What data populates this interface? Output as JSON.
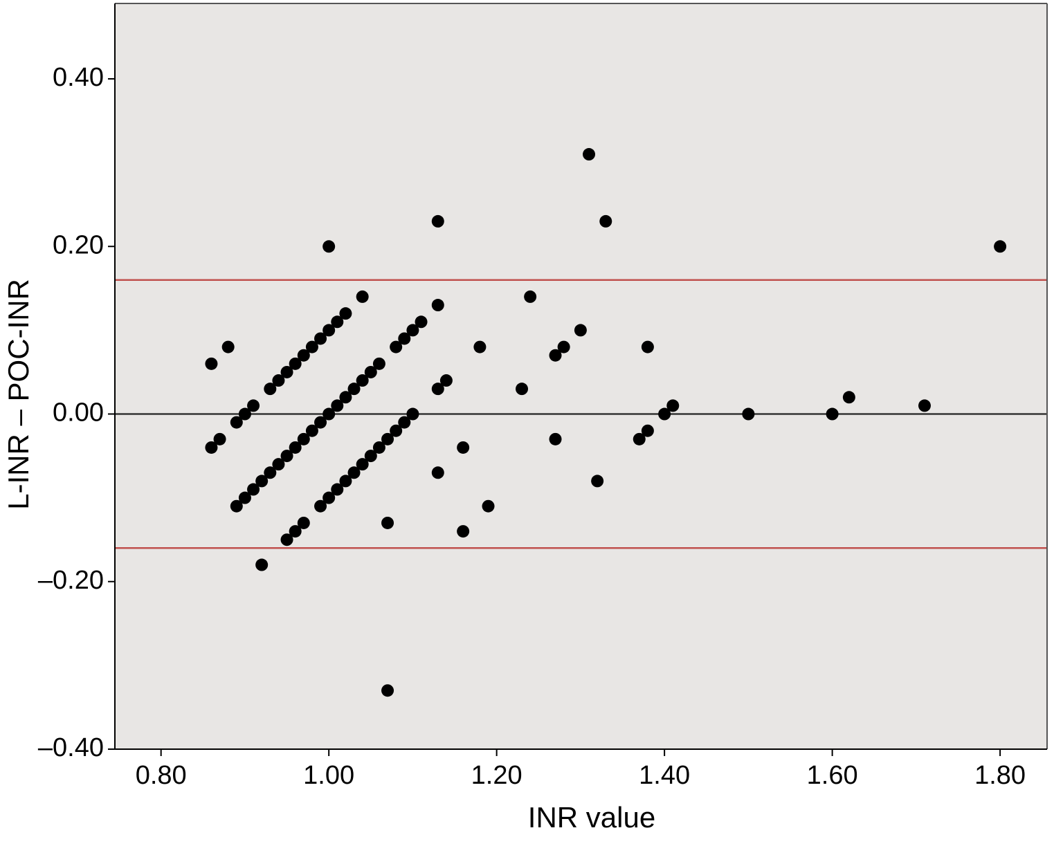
{
  "chart_data": {
    "type": "scatter",
    "xlabel": "INR value",
    "ylabel": "L-INR – POC-INR",
    "x": [
      0.86,
      0.88,
      0.86,
      0.87,
      1.0,
      1.13,
      1.31,
      1.33,
      1.8,
      1.24,
      1.13,
      1.18,
      1.3,
      1.27,
      1.28,
      1.38,
      1.23,
      1.13,
      1.14,
      1.41,
      1.4,
      1.5,
      1.6,
      1.62,
      1.71,
      1.37,
      1.38,
      1.27,
      1.16,
      1.13,
      1.32,
      1.19,
      1.07,
      1.16,
      0.92,
      1.07,
      0.89,
      0.9,
      0.91,
      0.93,
      0.94,
      0.95,
      0.96,
      0.97,
      0.98,
      0.99,
      1.0,
      1.01,
      1.02,
      1.04,
      0.89,
      0.9,
      0.91,
      0.92,
      0.93,
      0.94,
      0.95,
      0.96,
      0.97,
      0.98,
      0.99,
      1.0,
      1.01,
      1.02,
      1.03,
      1.04,
      1.05,
      1.06,
      1.08,
      1.09,
      1.1,
      1.11,
      0.95,
      0.96,
      0.97,
      0.99,
      1.0,
      1.01,
      1.02,
      1.03,
      1.04,
      1.05,
      1.06,
      1.07,
      1.08,
      1.09,
      1.1
    ],
    "values": [
      0.06,
      0.08,
      -0.04,
      -0.03,
      0.2,
      0.23,
      0.31,
      0.23,
      0.2,
      0.14,
      0.13,
      0.08,
      0.1,
      0.07,
      0.08,
      0.08,
      0.03,
      0.03,
      0.04,
      0.01,
      0.0,
      0.0,
      0.0,
      0.02,
      0.01,
      -0.03,
      -0.02,
      -0.03,
      -0.04,
      -0.07,
      -0.08,
      -0.11,
      -0.13,
      -0.14,
      -0.18,
      -0.33,
      -0.01,
      0.0,
      0.01,
      0.03,
      0.04,
      0.05,
      0.06,
      0.07,
      0.08,
      0.09,
      0.1,
      0.11,
      0.12,
      0.14,
      -0.11,
      -0.1,
      -0.09,
      -0.08,
      -0.07,
      -0.06,
      -0.05,
      -0.04,
      -0.03,
      -0.02,
      -0.01,
      0.0,
      0.01,
      0.02,
      0.03,
      0.04,
      0.05,
      0.06,
      0.08,
      0.09,
      0.1,
      0.11,
      -0.15,
      -0.14,
      -0.13,
      -0.11,
      -0.1,
      -0.09,
      -0.08,
      -0.07,
      -0.06,
      -0.05,
      -0.04,
      -0.03,
      -0.02,
      -0.01,
      0.0
    ],
    "color": "#000000",
    "reference_lines": [
      {
        "value": 0.16,
        "color": "#c0504d"
      },
      {
        "value": 0,
        "color": "#333333"
      },
      {
        "value": -0.16,
        "color": "#c0504d"
      }
    ],
    "xlim": [
      0.745,
      1.856
    ],
    "ylim": [
      -0.4,
      0.49
    ],
    "xticks": [
      {
        "value": 0.8,
        "label": "0.80"
      },
      {
        "value": 1.0,
        "label": "1.00"
      },
      {
        "value": 1.2,
        "label": "1.20"
      },
      {
        "value": 1.4,
        "label": "1.40"
      },
      {
        "value": 1.6,
        "label": "1.60"
      },
      {
        "value": 1.8,
        "label": "1.80"
      }
    ],
    "yticks": [
      {
        "value": 0.4,
        "label": "0.40"
      },
      {
        "value": 0.2,
        "label": "0.20"
      },
      {
        "value": 0,
        "label": "0.00"
      },
      {
        "value": -0.2,
        "label": "–0.20"
      },
      {
        "value": -0.4,
        "label": "–0.40"
      }
    ],
    "background": "#e8e6e4"
  }
}
